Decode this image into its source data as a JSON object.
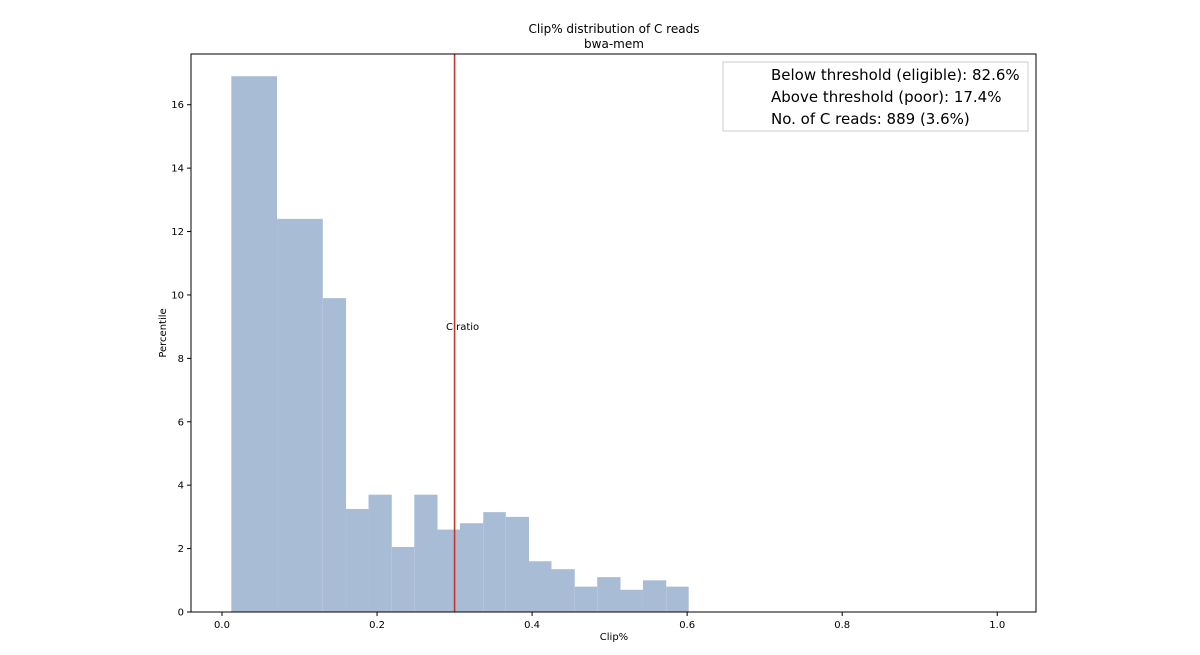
{
  "chart_data": {
    "type": "bar",
    "title": "Clip% distribution of C reads",
    "subtitle": "bwa-mem",
    "xlabel": "Clip%",
    "ylabel": "Percentile",
    "xlim": [
      -0.04,
      1.05
    ],
    "ylim": [
      0,
      17.6
    ],
    "xticks": [
      0.0,
      0.2,
      0.4,
      0.6,
      0.8,
      1.0
    ],
    "xtick_labels": [
      "0.0",
      "0.2",
      "0.4",
      "0.6",
      "0.8",
      "1.0"
    ],
    "yticks": [
      0,
      2,
      4,
      6,
      8,
      10,
      12,
      14,
      16
    ],
    "ytick_labels": [
      "0",
      "2",
      "4",
      "6",
      "8",
      "10",
      "12",
      "14",
      "16"
    ],
    "grid": false,
    "bar_color": "#a9bcd6",
    "bins": [
      {
        "x0": 0.012,
        "x1": 0.071,
        "value": 16.9
      },
      {
        "x0": 0.071,
        "x1": 0.13,
        "value": 12.4
      },
      {
        "x0": 0.13,
        "x1": 0.16,
        "value": 9.9
      },
      {
        "x0": 0.16,
        "x1": 0.189,
        "value": 3.25
      },
      {
        "x0": 0.189,
        "x1": 0.219,
        "value": 3.7
      },
      {
        "x0": 0.219,
        "x1": 0.248,
        "value": 2.05
      },
      {
        "x0": 0.248,
        "x1": 0.278,
        "value": 3.7
      },
      {
        "x0": 0.278,
        "x1": 0.307,
        "value": 2.6
      },
      {
        "x0": 0.307,
        "x1": 0.337,
        "value": 2.8
      },
      {
        "x0": 0.337,
        "x1": 0.366,
        "value": 3.15
      },
      {
        "x0": 0.366,
        "x1": 0.396,
        "value": 3.0
      },
      {
        "x0": 0.396,
        "x1": 0.425,
        "value": 1.6
      },
      {
        "x0": 0.425,
        "x1": 0.455,
        "value": 1.35
      },
      {
        "x0": 0.455,
        "x1": 0.484,
        "value": 0.8
      },
      {
        "x0": 0.484,
        "x1": 0.514,
        "value": 1.1
      },
      {
        "x0": 0.514,
        "x1": 0.543,
        "value": 0.7
      },
      {
        "x0": 0.543,
        "x1": 0.573,
        "value": 1.0
      },
      {
        "x0": 0.573,
        "x1": 0.602,
        "value": 0.8
      }
    ],
    "threshold": {
      "x": 0.3,
      "color": "#c0392b"
    },
    "annotation": {
      "text": "C ratio",
      "x": 0.3,
      "y": 8.9
    },
    "legend": {
      "placement": "top-right",
      "entries": [
        "Below threshold (eligible): 82.6%",
        "Above threshold (poor): 17.4%",
        "No. of C reads: 889 (3.6%)"
      ]
    }
  }
}
